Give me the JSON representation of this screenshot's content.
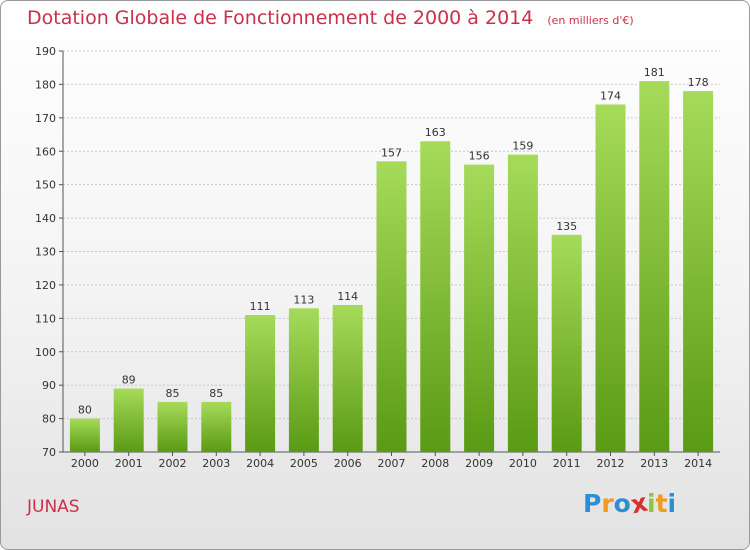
{
  "chart_data": {
    "type": "bar",
    "title": "Dotation Globale de Fonctionnement de 2000 à 2014",
    "unit": "(en milliers d'€)",
    "categories": [
      "2000",
      "2001",
      "2002",
      "2003",
      "2004",
      "2005",
      "2006",
      "2007",
      "2008",
      "2009",
      "2010",
      "2011",
      "2012",
      "2013",
      "2014"
    ],
    "values": [
      80,
      89,
      85,
      85,
      111,
      113,
      114,
      157,
      163,
      156,
      159,
      135,
      174,
      181,
      178
    ],
    "ylim": [
      70,
      190
    ],
    "yticks": [
      70,
      80,
      90,
      100,
      110,
      120,
      130,
      140,
      150,
      160,
      170,
      180,
      190
    ],
    "grid": true,
    "bar_color": "#7cc42a",
    "bar_color_dark": "#5a9a14",
    "bar_color_light": "#a6db5a"
  },
  "footer": {
    "place": "JUNAS"
  },
  "logo": {
    "letters": [
      "P",
      "r",
      "o",
      "x",
      "i",
      "t",
      "i"
    ],
    "colors": [
      "#2a8fd4",
      "#f29a1f",
      "#2a8fd4",
      "#d6312e",
      "#8dc63f",
      "#f29a1f",
      "#2a8fd4"
    ]
  }
}
